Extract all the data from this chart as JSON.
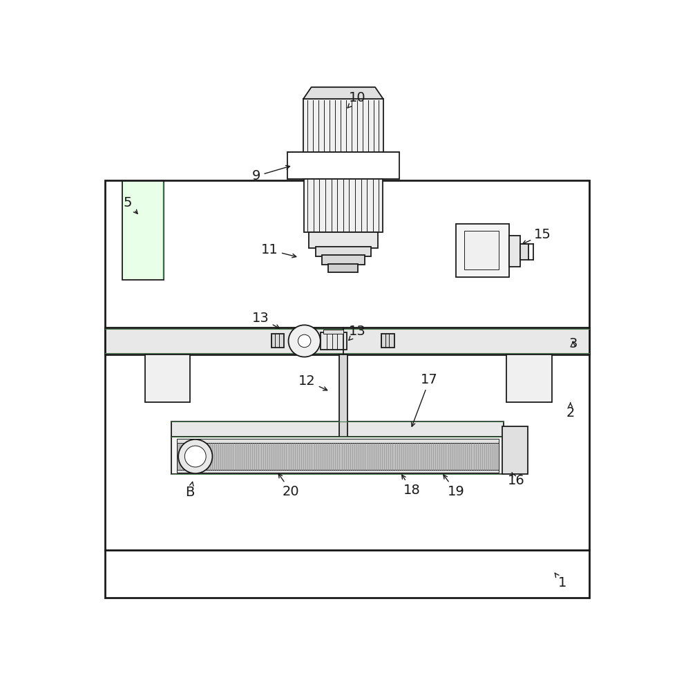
{
  "bg": "#ffffff",
  "lc": "#1a1a1a",
  "lw": 1.3,
  "lw2": 2.0,
  "lwt": 0.7,
  "fc_white": "#ffffff",
  "fc_light": "#f0f0f0",
  "fc_med": "#e0e0e0",
  "fc_dark": "#c8c8c8",
  "green": "#4a7a50"
}
